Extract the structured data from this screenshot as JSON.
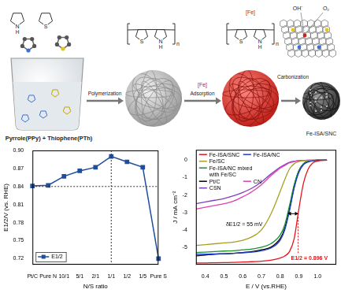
{
  "diagram": {
    "monomers": [
      {
        "atom": "N",
        "substituent": "H"
      },
      {
        "atom": "S"
      }
    ],
    "mixture": "Pyrrole(PPy) + Thiophene(PTh)",
    "steps": [
      {
        "label": "Polymerization"
      },
      {
        "label": "Adsorption",
        "reagent": "[Fe]"
      },
      {
        "label": "Carbonization"
      }
    ],
    "polymer": {
      "atoms": [
        "S",
        "N",
        "H"
      ],
      "repeat": "n"
    },
    "loaded_polymer": {
      "tag": "[Fe]"
    },
    "product": {
      "label": "Fe-ISA/SNC",
      "species": [
        "OH⁻",
        "O₂"
      ]
    }
  },
  "chart_data": [
    {
      "type": "line",
      "x_label": "N/S ratio",
      "y_label": "E1/2/V (vs. RHE)",
      "categories": [
        "Pt/C",
        "Pure N",
        "10/1",
        "5/1",
        "2/1",
        "1/1",
        "1/2",
        "1/5",
        "Pure S"
      ],
      "series": [
        {
          "name": "E1/2",
          "color": "#1f4e9c",
          "marker": "square",
          "values": [
            0.841,
            0.842,
            0.857,
            0.866,
            0.872,
            0.89,
            0.881,
            0.872,
            0.72
          ]
        }
      ],
      "ylim": [
        0.71,
        0.9
      ],
      "yticks": [
        0.72,
        0.75,
        0.78,
        0.81,
        0.84,
        0.87,
        {
          "value": 0.9,
          "label": "0.90"
        }
      ],
      "ref_lines": {
        "y": [
          0.84
        ],
        "x": [
          "1/1"
        ]
      },
      "grid": false,
      "legend": "bottom-left"
    },
    {
      "type": "line",
      "x_label": "E / V (vs.RHE)",
      "y_label": "J / mA cm⁻²",
      "x": [
        0.35,
        0.4,
        0.45,
        0.5,
        0.55,
        0.6,
        0.65,
        0.7,
        0.75,
        0.8,
        0.825,
        0.85,
        0.875,
        0.9,
        0.925,
        0.95,
        0.975,
        1.0,
        1.05
      ],
      "series": [
        {
          "name": "Fe-ISA/SNC",
          "color": "#e8141b",
          "values": [
            -5.9,
            -5.9,
            -5.89,
            -5.88,
            -5.87,
            -5.85,
            -5.83,
            -5.8,
            -5.75,
            -5.62,
            -5.5,
            -5.25,
            -4.5,
            -2.8,
            -1.3,
            -0.5,
            -0.15,
            -0.05,
            0
          ]
        },
        {
          "name": "Fe-ISA/NC",
          "color": "#1f3fd1",
          "values": [
            -5.4,
            -5.4,
            -5.38,
            -5.37,
            -5.35,
            -5.32,
            -5.28,
            -5.2,
            -5.05,
            -4.6,
            -4.0,
            -2.9,
            -1.6,
            -0.7,
            -0.25,
            -0.1,
            -0.03,
            0,
            0
          ]
        },
        {
          "name": "Fe/SC",
          "color": "#a8a020",
          "values": [
            -4.9,
            -4.85,
            -4.8,
            -4.75,
            -4.7,
            -4.6,
            -4.4,
            -4.0,
            -3.1,
            -1.8,
            -1.1,
            -0.5,
            -0.2,
            -0.08,
            -0.03,
            -0.01,
            0,
            0,
            0
          ]
        },
        {
          "name": "Fe-ISA/NC mixed with Fe/SC",
          "color": "#1a8f2a",
          "values": [
            -5.3,
            -5.28,
            -5.25,
            -5.22,
            -5.2,
            -5.15,
            -5.1,
            -5.0,
            -4.8,
            -4.3,
            -3.7,
            -2.6,
            -1.4,
            -0.6,
            -0.2,
            -0.07,
            -0.02,
            0,
            0
          ]
        },
        {
          "name": "Pt/C",
          "color": "#000000",
          "values": [
            -5.5,
            -5.45,
            -5.4,
            -5.38,
            -5.35,
            -5.3,
            -5.25,
            -5.15,
            -5.0,
            -4.5,
            -3.9,
            -2.8,
            -1.5,
            -0.6,
            -0.2,
            -0.05,
            -0.02,
            0,
            0
          ]
        },
        {
          "name": "CN",
          "color": "#e040b0",
          "values": [
            -2.8,
            -2.7,
            -2.6,
            -2.5,
            -2.35,
            -2.1,
            -1.8,
            -1.4,
            -0.9,
            -0.45,
            -0.3,
            -0.15,
            -0.08,
            -0.03,
            -0.01,
            0,
            0,
            0,
            0
          ]
        },
        {
          "name": "CSN",
          "color": "#7b3fbf",
          "values": [
            -2.5,
            -2.4,
            -2.3,
            -2.2,
            -2.05,
            -1.85,
            -1.6,
            -1.25,
            -0.8,
            -0.4,
            -0.25,
            -0.12,
            -0.06,
            -0.02,
            -0.01,
            0,
            0,
            0,
            0
          ]
        }
      ],
      "xlim": [
        0.35,
        1.1
      ],
      "xticks": [
        0.4,
        0.5,
        0.6,
        0.7,
        0.8,
        0.9,
        {
          "value": 1,
          "label": "1.0"
        }
      ],
      "ylim": [
        -6,
        0.6
      ],
      "yticks": [
        -5,
        -4,
        -3,
        -2,
        -1,
        0
      ],
      "annotations": [
        {
          "text": "E1/2 = 0.896 V",
          "x": 0.896,
          "on": "Fe-ISA/SNC",
          "color": "#e8141b"
        },
        {
          "text": "δE1/2 = 55 mV",
          "x_range": [
            0.841,
            0.896
          ],
          "on": "Fe-ISA/SNC"
        }
      ],
      "grid": false,
      "legend": "top-left"
    }
  ]
}
